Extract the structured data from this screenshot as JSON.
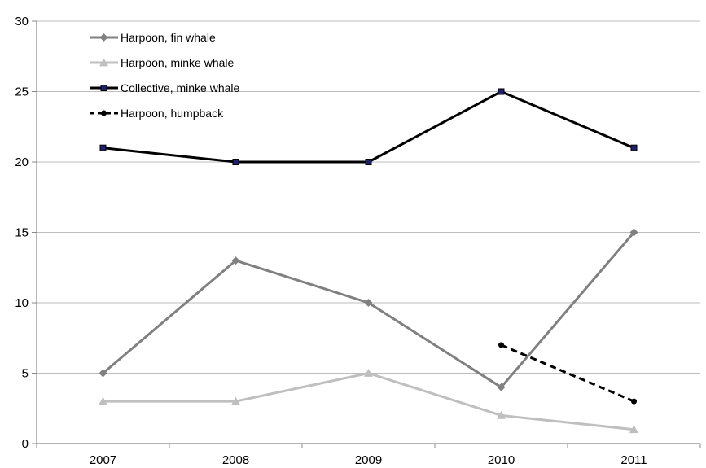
{
  "chart_data": {
    "type": "line",
    "title": "",
    "xlabel": "",
    "ylabel": "",
    "x": [
      "2007",
      "2008",
      "2009",
      "2010",
      "2011"
    ],
    "ylim": [
      0,
      30
    ],
    "yticks": [
      0,
      5,
      10,
      15,
      20,
      25,
      30
    ],
    "grid": true,
    "legend_position": "top-left (inside plot)",
    "series": [
      {
        "name": "Harpoon, fin whale",
        "color": "#808080",
        "marker": "diamond",
        "dashed": false,
        "values": [
          5,
          13,
          10,
          4,
          15
        ]
      },
      {
        "name": "Harpoon, minke whale",
        "color": "#bfbfbf",
        "marker": "triangle",
        "dashed": false,
        "values": [
          3,
          3,
          5,
          2,
          1
        ]
      },
      {
        "name": "Collective, minke whale",
        "color": "#000000",
        "marker": "square",
        "dashed": false,
        "values": [
          21,
          20,
          20,
          25,
          21
        ]
      },
      {
        "name": "Harpoon, humpback",
        "color": "#000000",
        "marker": "circle",
        "dashed": true,
        "values": [
          null,
          null,
          null,
          7,
          3
        ]
      }
    ]
  }
}
